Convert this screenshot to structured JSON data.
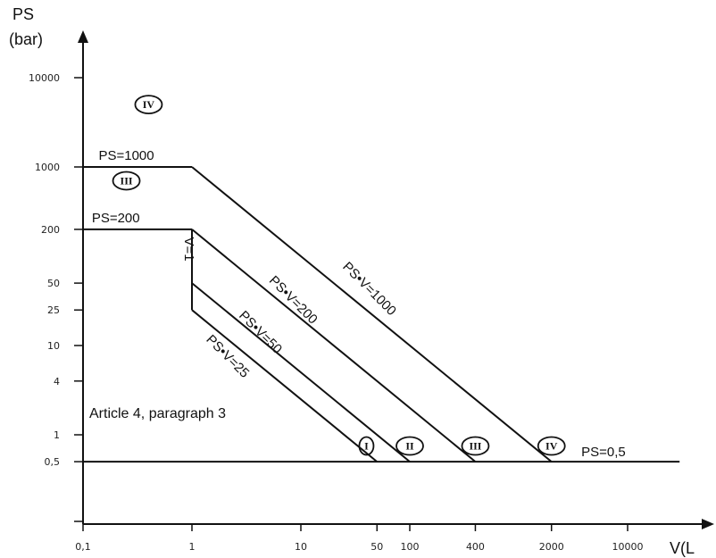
{
  "chart_data": {
    "type": "line",
    "title": "",
    "xlabel": "V(L",
    "ylabel_line1": "PS",
    "ylabel_line2": "(bar)",
    "x_scale": "log",
    "y_scale": "log",
    "x_ticks": [
      {
        "value": 0.1,
        "label": "0,1"
      },
      {
        "value": 1,
        "label": "1"
      },
      {
        "value": 10,
        "label": "10"
      },
      {
        "value": 50,
        "label": "50"
      },
      {
        "value": 100,
        "label": "100"
      },
      {
        "value": 400,
        "label": "400"
      },
      {
        "value": 2000,
        "label": "2000"
      },
      {
        "value": 10000,
        "label": "10000"
      }
    ],
    "y_ticks": [
      {
        "value": 0.5,
        "label": "0,5"
      },
      {
        "value": 1,
        "label": "1"
      },
      {
        "value": 4,
        "label": "4"
      },
      {
        "value": 10,
        "label": "10"
      },
      {
        "value": 25,
        "label": "25"
      },
      {
        "value": 50,
        "label": "50"
      },
      {
        "value": 200,
        "label": "200"
      },
      {
        "value": 1000,
        "label": "1000"
      },
      {
        "value": 10000,
        "label": "10000"
      }
    ],
    "lines": [
      {
        "name": "PS=1000",
        "points": [
          [
            0.1,
            1000
          ],
          [
            1,
            1000
          ]
        ]
      },
      {
        "name": "PS•V=1000",
        "points": [
          [
            1,
            1000
          ],
          [
            2000,
            0.5
          ]
        ]
      },
      {
        "name": "PS=200",
        "points": [
          [
            0.1,
            200
          ],
          [
            1,
            200
          ]
        ]
      },
      {
        "name": "PS•V=200",
        "points": [
          [
            1,
            200
          ],
          [
            400,
            0.5
          ]
        ]
      },
      {
        "name": "V=1",
        "points": [
          [
            1,
            200
          ],
          [
            1,
            25
          ]
        ]
      },
      {
        "name": "PS•V=50",
        "points": [
          [
            1,
            50
          ],
          [
            100,
            0.5
          ]
        ]
      },
      {
        "name": "PS•V=25",
        "points": [
          [
            1,
            25
          ],
          [
            50,
            0.5
          ]
        ]
      },
      {
        "name": "PS=0,5",
        "points": [
          [
            0.1,
            0.5
          ],
          [
            30000,
            0.5
          ]
        ]
      }
    ],
    "line_labels": [
      {
        "text": "PS=1000",
        "x": 0.25,
        "y": 1000,
        "rotate": 0
      },
      {
        "text": "PS=200",
        "x": 0.2,
        "y": 200,
        "rotate": 0
      },
      {
        "text": "PS•V=1000",
        "x": 40,
        "y": 40,
        "rotate": 45
      },
      {
        "text": "PS•V=200",
        "x": 8,
        "y": 30,
        "rotate": 45
      },
      {
        "text": "PS•V=50",
        "x": 4,
        "y": 13,
        "rotate": 45
      },
      {
        "text": "PS•V=25",
        "x": 2,
        "y": 7,
        "rotate": 45
      },
      {
        "text": "V=1",
        "x": 1,
        "y": 120,
        "rotate": 90
      },
      {
        "text": "PS=0,5",
        "x": 6000,
        "y": 0.5,
        "rotate": 0
      }
    ],
    "categories": [
      {
        "label": "IV",
        "x": 0.4,
        "y": 5000
      },
      {
        "label": "III",
        "x": 0.25,
        "y": 700
      },
      {
        "label": "I",
        "x": 40,
        "y": 0.75
      },
      {
        "label": "II",
        "x": 100,
        "y": 0.75
      },
      {
        "label": "III",
        "x": 400,
        "y": 0.75
      },
      {
        "label": "IV",
        "x": 2000,
        "y": 0.75
      }
    ],
    "annotation": "Article 4, paragraph 3",
    "colors": {
      "line": "#111111",
      "axis": "#111111"
    }
  }
}
